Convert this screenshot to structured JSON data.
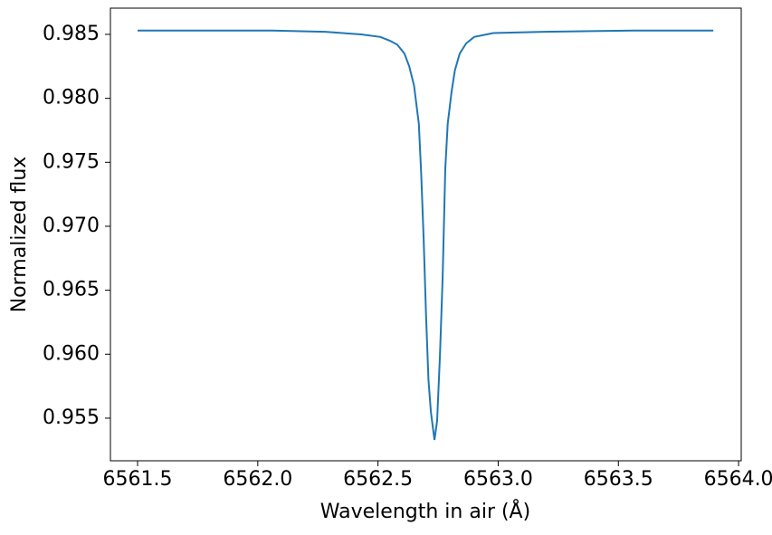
{
  "chart_data": {
    "type": "line",
    "xlabel": "Wavelength in air (Å)",
    "ylabel": "Normalized flux",
    "x": [
      6561.5,
      6562.06,
      6562.28,
      6562.43,
      6562.51,
      6562.55,
      6562.58,
      6562.61,
      6562.63,
      6562.65,
      6562.67,
      6562.68,
      6562.69,
      6562.7,
      6562.71,
      6562.72,
      6562.735,
      6562.746,
      6562.758,
      6562.769,
      6562.78,
      6562.79,
      6562.806,
      6562.82,
      6562.84,
      6562.867,
      6562.9,
      6562.98,
      6563.19,
      6563.56,
      6563.895
    ],
    "series": [
      {
        "color": "#1f77b4",
        "values": [
          0.9853,
          0.9853,
          0.9852,
          0.985,
          0.9848,
          0.9845,
          0.9842,
          0.9835,
          0.9825,
          0.981,
          0.978,
          0.974,
          0.969,
          0.963,
          0.958,
          0.9555,
          0.9533,
          0.9548,
          0.96,
          0.966,
          0.9745,
          0.978,
          0.9805,
          0.9822,
          0.9835,
          0.9843,
          0.9848,
          0.9851,
          0.9852,
          0.9853,
          0.9853
        ]
      }
    ],
    "xlim": [
      6561.387,
      6564.011
    ],
    "ylim": [
      0.95167,
      0.98705
    ],
    "xticks": [
      6561.5,
      {
        "value": 6562,
        "label": "6562.0"
      },
      6562.5,
      {
        "value": 6563,
        "label": "6563.0"
      },
      6563.5,
      {
        "value": 6564,
        "label": "6564.0"
      }
    ],
    "yticks": [
      0.955,
      {
        "value": 0.96,
        "label": "0.960"
      },
      0.965,
      {
        "value": 0.97,
        "label": "0.970"
      },
      0.975,
      {
        "value": 0.98,
        "label": "0.980"
      },
      0.985
    ],
    "grid": false
  }
}
